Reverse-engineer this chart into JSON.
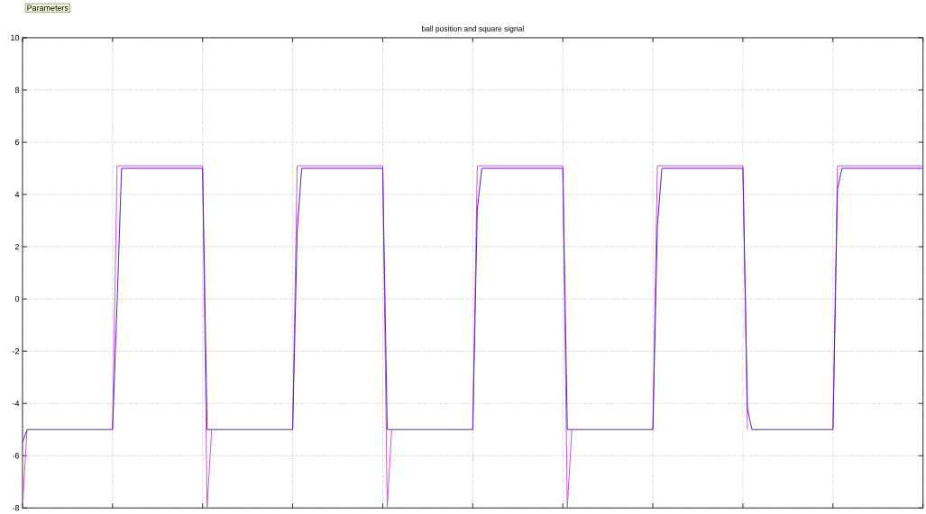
{
  "chart_data": {
    "type": "line",
    "title": "ball position and square signal",
    "annotations": [
      "Parameters"
    ],
    "categories": [
      null,
      null,
      null,
      null,
      null,
      null,
      null,
      null,
      null,
      null,
      null,
      null,
      null,
      null,
      null,
      null,
      null,
      null,
      null,
      null,
      null,
      null,
      null,
      null,
      null,
      null,
      null,
      null,
      null,
      null,
      null,
      null,
      null,
      null,
      null,
      null,
      null,
      null,
      null,
      null,
      null,
      null,
      null,
      null,
      null,
      null,
      null,
      null,
      null,
      null,
      null,
      null,
      null,
      null,
      null,
      null,
      null,
      null,
      null,
      null,
      null,
      null,
      null,
      null,
      null,
      null,
      null,
      null,
      null,
      null,
      null,
      null,
      null,
      null,
      null,
      null,
      null,
      null,
      null,
      null,
      null,
      null,
      null,
      null,
      null,
      null,
      null,
      null,
      null,
      null,
      null,
      null,
      null,
      null,
      null,
      null,
      null,
      null,
      null,
      null,
      null,
      null,
      null,
      null,
      null,
      null,
      null,
      null,
      null,
      null,
      null,
      null,
      null,
      null,
      null,
      null,
      null,
      null,
      null,
      null,
      null,
      null,
      null,
      null,
      null,
      null,
      null,
      null,
      null,
      null,
      null,
      null,
      null,
      null,
      null,
      null,
      null,
      null,
      null,
      null,
      null,
      null,
      null,
      null,
      null,
      null,
      null,
      null,
      null,
      null,
      null,
      null,
      null,
      null,
      null,
      null,
      null,
      null,
      null,
      null,
      null,
      null,
      null,
      null,
      null,
      null,
      null,
      null,
      null,
      null,
      null,
      null,
      null,
      null,
      null,
      null,
      null,
      null,
      null,
      null,
      null,
      null,
      null,
      null,
      null,
      null,
      null,
      null,
      null,
      null,
      null,
      null,
      null,
      null,
      null,
      null,
      null,
      null,
      null,
      null,
      null
    ],
    "series": [
      {
        "color": "#cc55d0",
        "values": [
          -8,
          -5,
          null,
          null,
          null,
          null,
          null,
          null,
          null,
          null,
          null,
          null,
          null,
          null,
          null,
          null,
          null,
          null,
          null,
          null,
          -5,
          5.1,
          5.1,
          5.1,
          5.1,
          5.1,
          5.1,
          5.1,
          5.1,
          5.1,
          5.1,
          5.1,
          5.1,
          5.1,
          5.1,
          5.1,
          5.1,
          5.1,
          5.1,
          5.1,
          5.1,
          -8,
          -5,
          null,
          null,
          null,
          null,
          null,
          null,
          null,
          null,
          null,
          null,
          null,
          null,
          null,
          null,
          null,
          null,
          null,
          -5,
          5.1,
          5.1,
          5.1,
          5.1,
          5.1,
          5.1,
          5.1,
          5.1,
          5.1,
          5.1,
          5.1,
          5.1,
          5.1,
          5.1,
          5.1,
          5.1,
          5.1,
          5.1,
          5.1,
          5.1,
          -8,
          -5,
          null,
          null,
          null,
          null,
          null,
          null,
          null,
          null,
          null,
          null,
          null,
          null,
          null,
          null,
          null,
          null,
          null,
          -5,
          5.1,
          5.1,
          5.1,
          5.1,
          5.1,
          5.1,
          5.1,
          5.1,
          5.1,
          5.1,
          5.1,
          5.1,
          5.1,
          5.1,
          5.1,
          5.1,
          5.1,
          5.1,
          5.1,
          5.1,
          -8,
          -5,
          null,
          null,
          null,
          null,
          null,
          null,
          null,
          null,
          null,
          null,
          null,
          null,
          null,
          null,
          null,
          null,
          null,
          -5,
          5.1,
          5.1,
          5.1,
          5.1,
          5.1,
          5.1,
          5.1,
          5.1,
          5.1,
          5.1,
          5.1,
          5.1,
          5.1,
          5.1,
          5.1,
          5.1,
          5.1,
          5.1,
          5.1,
          5.1,
          -5,
          null,
          null,
          null,
          null,
          null,
          null,
          null,
          null,
          null,
          null,
          null,
          null,
          null,
          null,
          null,
          null,
          null,
          null,
          -5,
          5.1,
          5.1,
          5.1,
          5.1,
          5.1,
          5.1,
          5.1,
          5.1,
          5.1,
          5.1,
          5.1,
          5.1,
          5.1,
          5.1,
          5.1,
          5.1,
          5.1,
          5.1,
          5.1,
          5.1
        ]
      },
      {
        "color": "#5020c8",
        "values": [
          -5.5,
          -5,
          -5,
          -5,
          -5,
          -5,
          -5,
          -5,
          -5,
          -5,
          -5,
          -5,
          -5,
          -5,
          -5,
          -5,
          -5,
          -5,
          -5,
          -5,
          -5,
          -0.2,
          5,
          5,
          5,
          5,
          5,
          5,
          5,
          5,
          5,
          5,
          5,
          5,
          5,
          5,
          5,
          5,
          5,
          5,
          5,
          -5,
          -5,
          -5,
          -5,
          -5,
          -5,
          -5,
          -5,
          -5,
          -5,
          -5,
          -5,
          -5,
          -5,
          -5,
          -5,
          -5,
          -5,
          -5,
          -5,
          2.6,
          5,
          5,
          5,
          5,
          5,
          5,
          5,
          5,
          5,
          5,
          5,
          5,
          5,
          5,
          5,
          5,
          5,
          5,
          5,
          -5,
          -5,
          -5,
          -5,
          -5,
          -5,
          -5,
          -5,
          -5,
          -5,
          -5,
          -5,
          -5,
          -5,
          -5,
          -5,
          -5,
          -5,
          -5,
          -5,
          3.4,
          5,
          5,
          5,
          5,
          5,
          5,
          5,
          5,
          5,
          5,
          5,
          5,
          5,
          5,
          5,
          5,
          5,
          5,
          5,
          -5,
          -5,
          -5,
          -5,
          -5,
          -5,
          -5,
          -5,
          -5,
          -5,
          -5,
          -5,
          -5,
          -5,
          -5,
          -5,
          -5,
          -5,
          -5,
          -5,
          2.8,
          5,
          5,
          5,
          5,
          5,
          5,
          5,
          5,
          5,
          5,
          5,
          5,
          5,
          5,
          5,
          5,
          5,
          5,
          5,
          -4.2,
          -5,
          -5,
          -5,
          -5,
          -5,
          -5,
          -5,
          -5,
          -5,
          -5,
          -5,
          -5,
          -5,
          -5,
          -5,
          -5,
          -5,
          -5,
          -5,
          4.2,
          5,
          5,
          5,
          5,
          5,
          5,
          5,
          5,
          5,
          5,
          5,
          5,
          5,
          5,
          5,
          5,
          5,
          5,
          5
        ]
      }
    ],
    "ylim": [
      -8,
      10
    ],
    "yticks": [
      -8,
      -6,
      -4,
      -2,
      0,
      2,
      4,
      6,
      8,
      10
    ],
    "grid": true,
    "marker": "none",
    "line_style": "solid",
    "tick_labels": "y"
  }
}
